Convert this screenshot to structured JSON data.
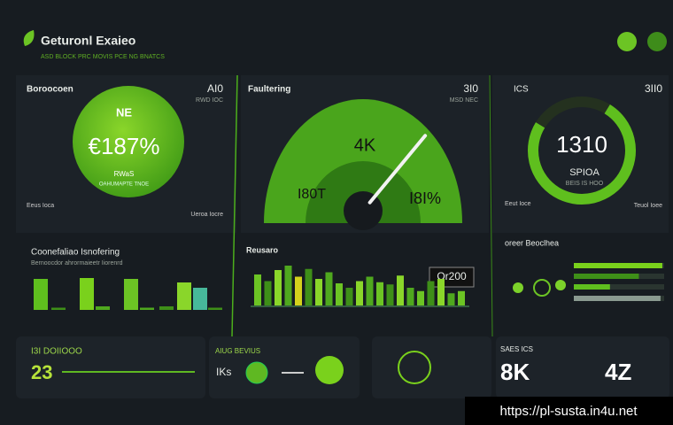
{
  "header": {
    "title": "Geturonl Exaieo",
    "subtitle": "ASD BLOCK PRC MOVIS PCE NG BNATCS"
  },
  "kpi_circle": {
    "label": "Boroocoen",
    "corner": "AI0",
    "corner_note": "RWD IOC",
    "badge": "NE",
    "value": "€187%",
    "caption": "RWaS",
    "caption_note": "OAHUMAPTE TNOE",
    "footer_left": "Eeus Ioca",
    "footer_right": "Ueroa Iocre"
  },
  "gauge": {
    "label": "Faultering",
    "corner": "3I0",
    "corner_note": "MSD NEC",
    "center": "4K",
    "left": "I80T",
    "right": "I8I%",
    "needle": 72
  },
  "ring": {
    "label": "ICS",
    "corner": "3II0",
    "value": "1310",
    "caption": "SPIOA",
    "caption_note": "BEIS IS HOO",
    "footer_left": "Eeut Ioce",
    "footer_right": "Teuol Ioee",
    "fill": 75
  },
  "bars_left": {
    "title": "Coonefaliao Isnofering",
    "subtitle": "Bernoocdor ahrormaieetr Iiorenrd",
    "values": [
      70,
      5,
      72,
      8,
      70,
      5,
      8,
      62,
      50,
      5
    ]
  },
  "bars_mid": {
    "label": "Reusaro",
    "box": "Or200",
    "values": [
      28,
      22,
      32,
      36,
      26,
      33,
      24,
      30,
      20,
      16,
      22,
      26,
      21,
      19,
      27,
      16,
      13,
      22,
      24,
      11,
      13
    ]
  },
  "legend_right": {
    "title": "oreer Beoclhea",
    "values": [
      98,
      72,
      40,
      96
    ]
  },
  "cards": [
    {
      "label": "I3I DOIIOOO",
      "value": "23"
    },
    {
      "label": "AIUG BEVIUS",
      "value": "IKs"
    },
    {
      "label": "SAES ICS",
      "value": "8K"
    },
    {
      "value": "4Z"
    }
  ],
  "watermark": "https://pl-susta.in4u.net"
}
